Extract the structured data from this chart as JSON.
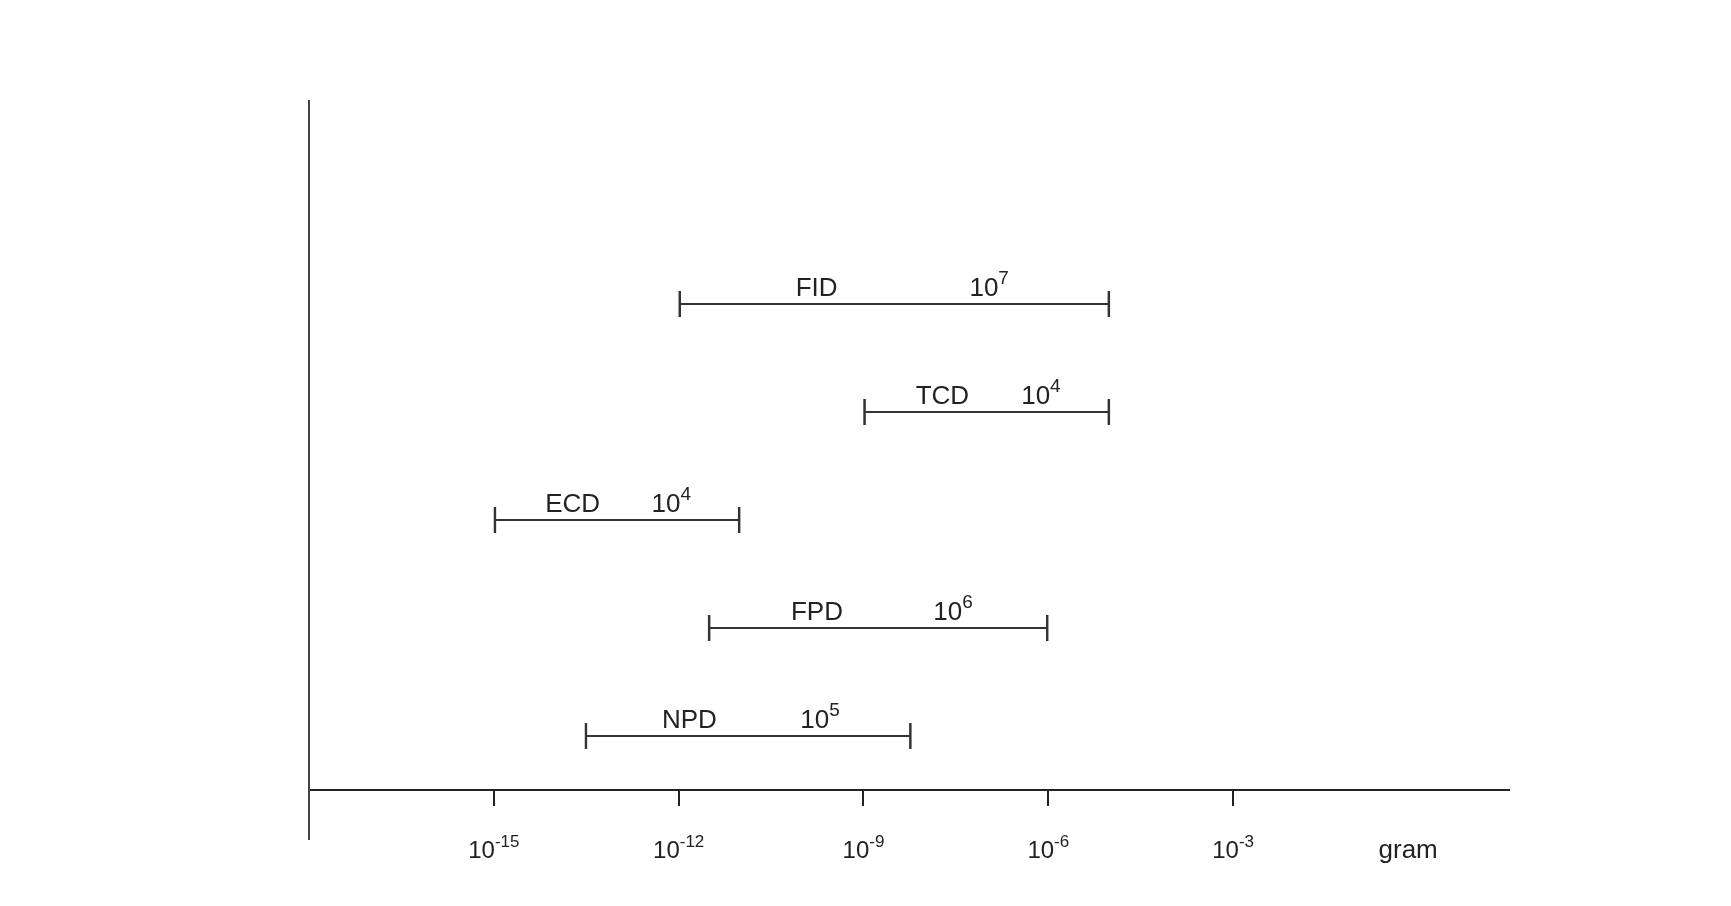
{
  "chart_data": {
    "type": "bar",
    "orientation": "horizontal",
    "log": "x",
    "categories": [
      "FID",
      "TCD",
      "ECD",
      "FPD",
      "NPD"
    ],
    "base": [
      1e-12,
      1e-09,
      1e-15,
      3e-12,
      3e-14
    ],
    "values": [
      1e-05,
      1e-05,
      1e-11,
      1e-06,
      6e-09
    ],
    "color": "#333333",
    "xlabel": "gram",
    "xlim": [
      1e-18,
      30
    ],
    "xticks": [
      {
        "value": 1e-15,
        "label": "10$^{-15}$"
      },
      {
        "value": 1e-12,
        "label": "10$^{-12}$"
      },
      {
        "value": 1e-09,
        "label": "10$^{-9}$"
      },
      {
        "value": 1e-06,
        "label": "10$^{-6}$"
      },
      {
        "value": 0.001,
        "label": "10$^{-3}$"
      }
    ],
    "annotations": [
      "10$^{7}$",
      "10$^{4}$",
      "10$^{4}$",
      "10$^{6}$",
      "10$^{5}$"
    ],
    "tick_labels": "x",
    "grid": false,
    "legend": false
  }
}
